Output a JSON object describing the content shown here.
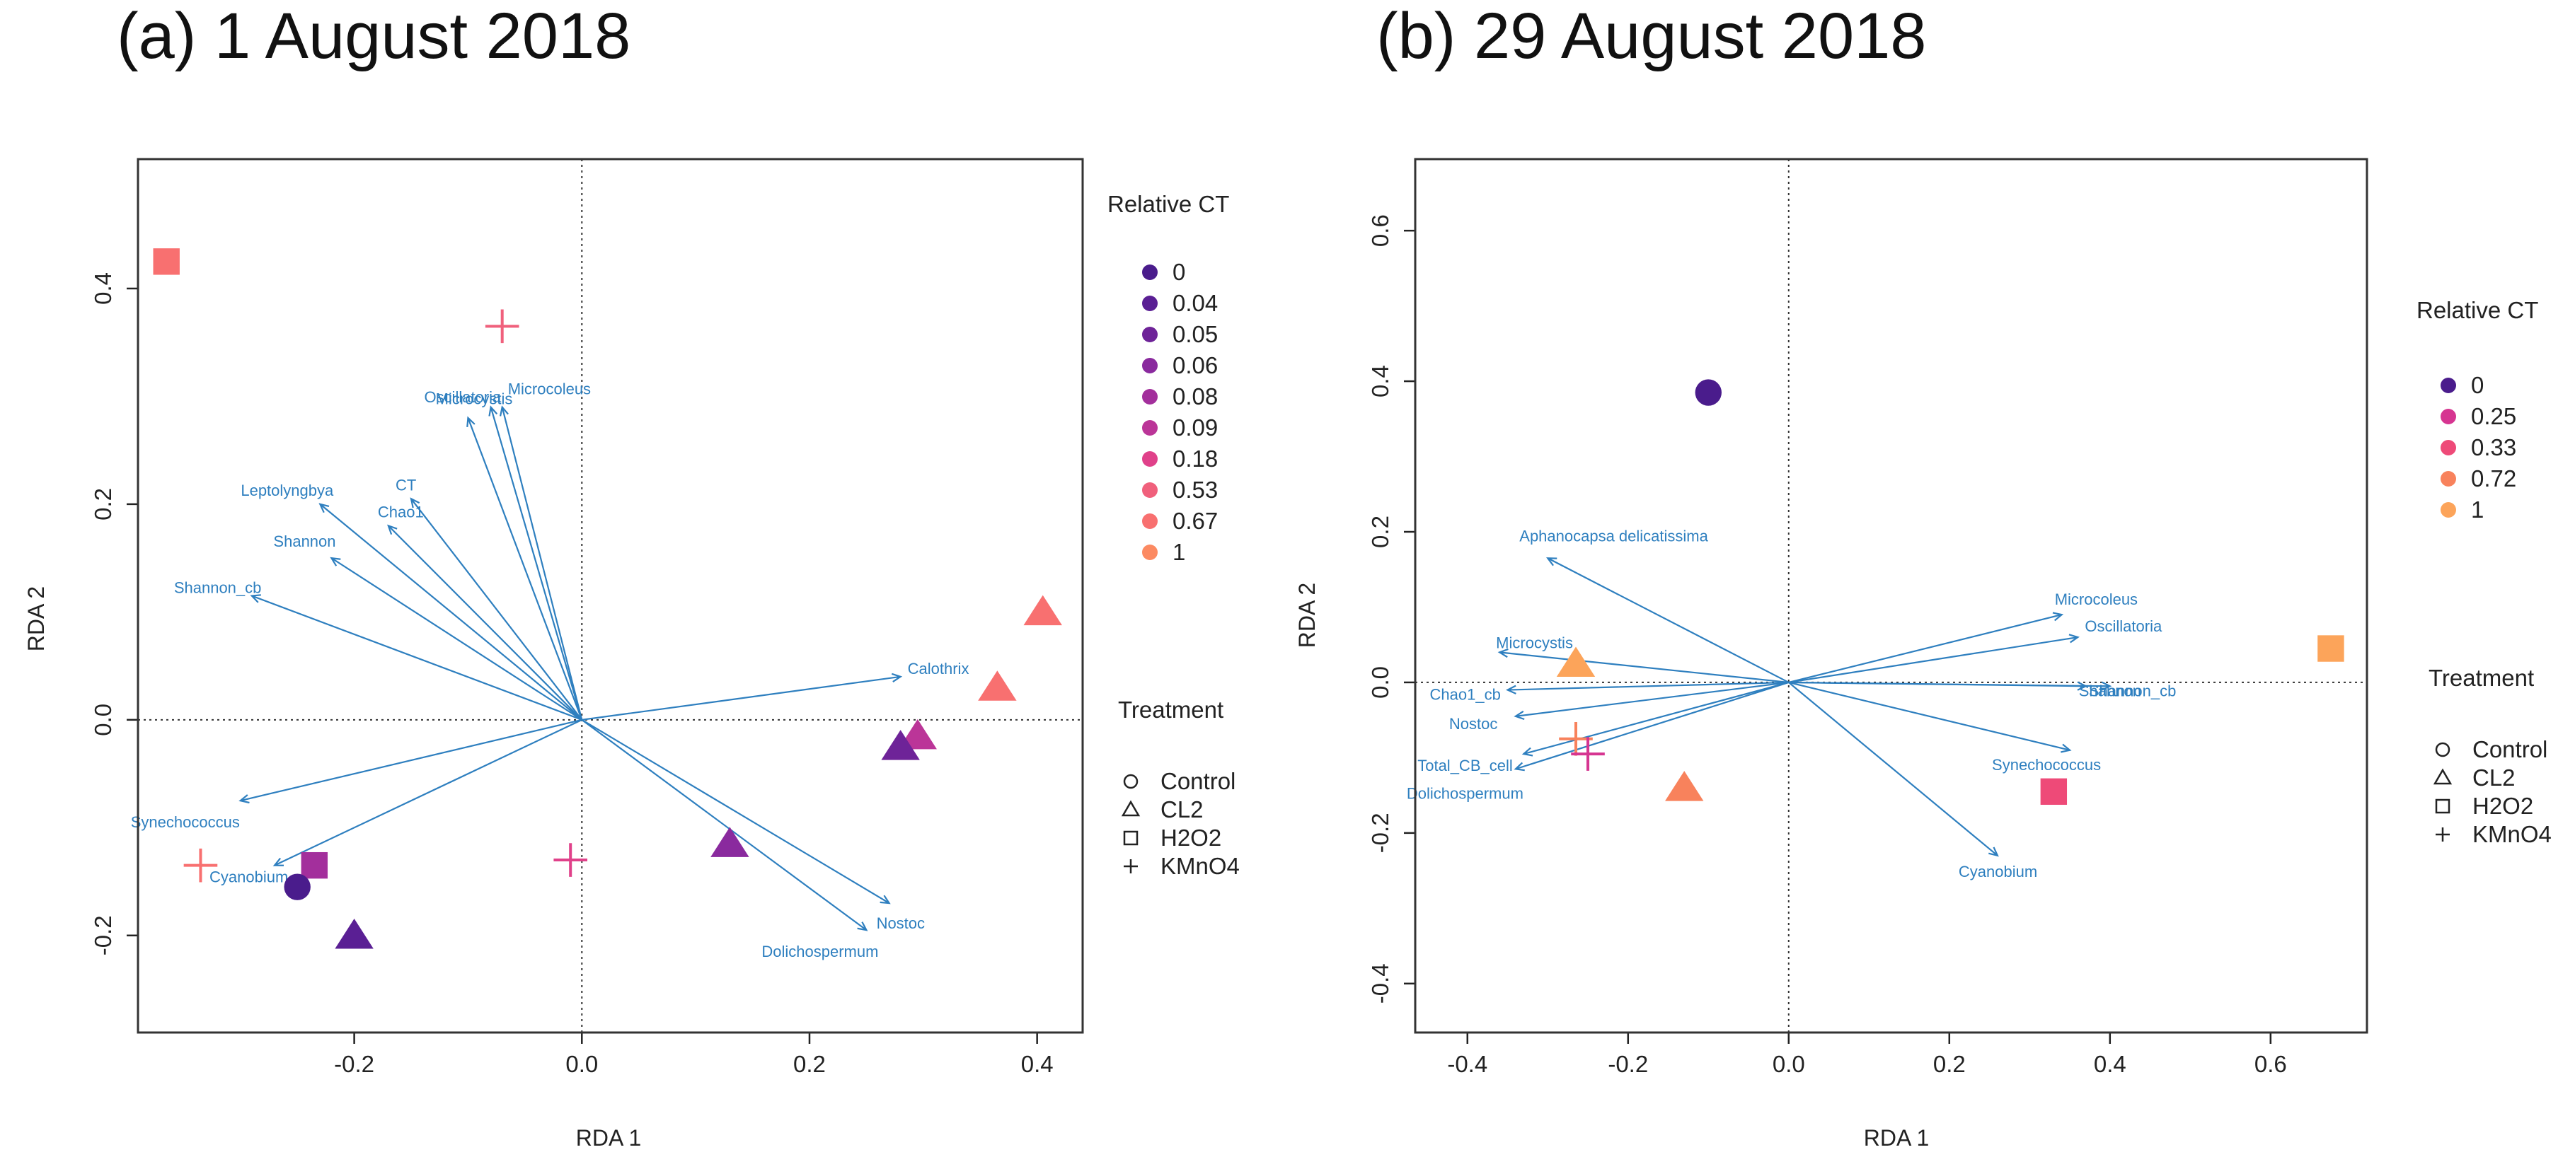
{
  "chart_data": [
    {
      "type": "scatter",
      "title": "(a) 1 August 2018",
      "xlabel": "RDA 1",
      "ylabel": "RDA 2",
      "xlim": [
        -0.39,
        0.44
      ],
      "ylim": [
        -0.29,
        0.52
      ],
      "xticks": [
        -0.2,
        0.0,
        0.2,
        0.4
      ],
      "yticks": [
        -0.2,
        0.0,
        0.2,
        0.4
      ],
      "tick_labels_x": [
        "-0.2",
        "0.0",
        "0.2",
        "0.4"
      ],
      "tick_labels_y": [
        "-0.2",
        "0.0",
        "0.2",
        "0.4"
      ],
      "reference_lines": {
        "x": 0,
        "y": 0,
        "style": "dotted"
      },
      "arrows": [
        {
          "label": "Oscillatoria",
          "x": -0.1,
          "y": 0.28
        },
        {
          "label": "Microcoleus",
          "x": -0.07,
          "y": 0.29
        },
        {
          "label": "Microcystis",
          "x": -0.08,
          "y": 0.29
        },
        {
          "label": "CT",
          "x": -0.15,
          "y": 0.205
        },
        {
          "label": "Leptolyngbya",
          "x": -0.23,
          "y": 0.2
        },
        {
          "label": "Chao1",
          "x": -0.17,
          "y": 0.18
        },
        {
          "label": "Shannon",
          "x": -0.22,
          "y": 0.15
        },
        {
          "label": "Shannon_cb",
          "x": -0.29,
          "y": 0.115
        },
        {
          "label": "Calothrix",
          "x": 0.28,
          "y": 0.04
        },
        {
          "label": "Synechococcus",
          "x": -0.3,
          "y": -0.075
        },
        {
          "label": "Cyanobium",
          "x": -0.27,
          "y": -0.135
        },
        {
          "label": "Nostoc",
          "x": 0.27,
          "y": -0.17
        },
        {
          "label": "Dolichospermum",
          "x": 0.25,
          "y": -0.195
        }
      ],
      "points": [
        {
          "x": -0.365,
          "y": 0.425,
          "treatment": "H2O2",
          "ct": "0.67"
        },
        {
          "x": -0.07,
          "y": 0.365,
          "treatment": "KMnO4",
          "ct": "0.53"
        },
        {
          "x": 0.405,
          "y": 0.1,
          "treatment": "CL2",
          "ct": "0.67"
        },
        {
          "x": 0.365,
          "y": 0.03,
          "treatment": "CL2",
          "ct": "0.67"
        },
        {
          "x": 0.295,
          "y": -0.015,
          "treatment": "CL2",
          "ct": "0.09"
        },
        {
          "x": 0.28,
          "y": -0.025,
          "treatment": "CL2",
          "ct": "0.05"
        },
        {
          "x": 0.13,
          "y": -0.115,
          "treatment": "CL2",
          "ct": "0.06"
        },
        {
          "x": -0.01,
          "y": -0.13,
          "treatment": "KMnO4",
          "ct": "0.18"
        },
        {
          "x": -0.335,
          "y": -0.135,
          "treatment": "KMnO4",
          "ct": "0.67"
        },
        {
          "x": -0.235,
          "y": -0.135,
          "treatment": "H2O2",
          "ct": "0.08"
        },
        {
          "x": -0.25,
          "y": -0.155,
          "treatment": "Control",
          "ct": "0"
        },
        {
          "x": -0.2,
          "y": -0.2,
          "treatment": "CL2",
          "ct": "0.04"
        }
      ],
      "legend_ct": {
        "title": "Relative CT",
        "entries": [
          {
            "label": "0",
            "color": "#4a1c8c"
          },
          {
            "label": "0.04",
            "color": "#5a1f94"
          },
          {
            "label": "0.05",
            "color": "#6e2398"
          },
          {
            "label": "0.06",
            "color": "#8a2a9e"
          },
          {
            "label": "0.08",
            "color": "#a32f9c"
          },
          {
            "label": "0.09",
            "color": "#bb3598"
          },
          {
            "label": "0.18",
            "color": "#e0418a"
          },
          {
            "label": "0.53",
            "color": "#f0607c"
          },
          {
            "label": "0.67",
            "color": "#f87070"
          },
          {
            "label": "1",
            "color": "#fc8a62"
          }
        ]
      },
      "legend_treatment": {
        "title": "Treatment",
        "entries": [
          {
            "label": "Control",
            "shape": "circle"
          },
          {
            "label": "CL2",
            "shape": "triangle"
          },
          {
            "label": "H2O2",
            "shape": "square"
          },
          {
            "label": "KMnO4",
            "shape": "plus"
          }
        ]
      }
    },
    {
      "type": "scatter",
      "title": "(b) 29 August 2018",
      "xlabel": "RDA 1",
      "ylabel": "RDA 2",
      "xlim": [
        -0.465,
        0.72
      ],
      "ylim": [
        -0.465,
        0.695
      ],
      "xticks": [
        -0.4,
        -0.2,
        0.0,
        0.2,
        0.4,
        0.6
      ],
      "yticks": [
        -0.4,
        -0.2,
        0.0,
        0.2,
        0.4,
        0.6
      ],
      "tick_labels_x": [
        "-0.4",
        "-0.2",
        "0.0",
        "0.2",
        "0.4",
        "0.6"
      ],
      "tick_labels_y": [
        "-0.4",
        "-0.2",
        "0.0",
        "0.2",
        "0.4",
        "0.6"
      ],
      "reference_lines": {
        "x": 0,
        "y": 0,
        "style": "dotted"
      },
      "arrows": [
        {
          "label": "Aphanocapsa delicatissima",
          "x": -0.3,
          "y": 0.165
        },
        {
          "label": "Microcoleus",
          "x": 0.34,
          "y": 0.09
        },
        {
          "label": "Oscillatoria",
          "x": 0.36,
          "y": 0.06
        },
        {
          "label": "Microcystis",
          "x": -0.36,
          "y": 0.04
        },
        {
          "label": "Shannon",
          "x": 0.37,
          "y": -0.005
        },
        {
          "label": "Shannon_cb",
          "x": 0.4,
          "y": -0.005
        },
        {
          "label": "Chao1_cb",
          "x": -0.35,
          "y": -0.01
        },
        {
          "label": "Nostoc",
          "x": -0.34,
          "y": -0.045
        },
        {
          "label": "Synechococcus",
          "x": 0.35,
          "y": -0.09
        },
        {
          "label": "Total_CB_cell",
          "x": -0.33,
          "y": -0.095
        },
        {
          "label": "Dolichospermum",
          "x": -0.34,
          "y": -0.115
        },
        {
          "label": "Cyanobium",
          "x": 0.26,
          "y": -0.23
        }
      ],
      "points": [
        {
          "x": -0.1,
          "y": 0.385,
          "treatment": "Control",
          "ct": "0"
        },
        {
          "x": 0.675,
          "y": 0.045,
          "treatment": "H2O2",
          "ct": "1"
        },
        {
          "x": -0.265,
          "y": 0.025,
          "treatment": "CL2",
          "ct": "1"
        },
        {
          "x": -0.265,
          "y": -0.075,
          "treatment": "KMnO4",
          "ct": "0.72"
        },
        {
          "x": -0.25,
          "y": -0.095,
          "treatment": "KMnO4",
          "ct": "0.25"
        },
        {
          "x": -0.13,
          "y": -0.14,
          "treatment": "CL2",
          "ct": "0.72"
        },
        {
          "x": 0.33,
          "y": -0.145,
          "treatment": "H2O2",
          "ct": "0.33"
        }
      ],
      "legend_ct": {
        "title": "Relative CT",
        "entries": [
          {
            "label": "0",
            "color": "#4a1c8c"
          },
          {
            "label": "0.25",
            "color": "#d63591"
          },
          {
            "label": "0.33",
            "color": "#ee4a78"
          },
          {
            "label": "0.72",
            "color": "#f8825c"
          },
          {
            "label": "1",
            "color": "#fca45a"
          }
        ]
      },
      "legend_treatment": {
        "title": "Treatment",
        "entries": [
          {
            "label": "Control",
            "shape": "circle"
          },
          {
            "label": "CL2",
            "shape": "triangle"
          },
          {
            "label": "H2O2",
            "shape": "square"
          },
          {
            "label": "KMnO4",
            "shape": "plus"
          }
        ]
      }
    }
  ],
  "colors": {
    "arrow": "#2e7fbf",
    "axis": "#222222",
    "frame": "#333333",
    "reference": "#333333"
  }
}
